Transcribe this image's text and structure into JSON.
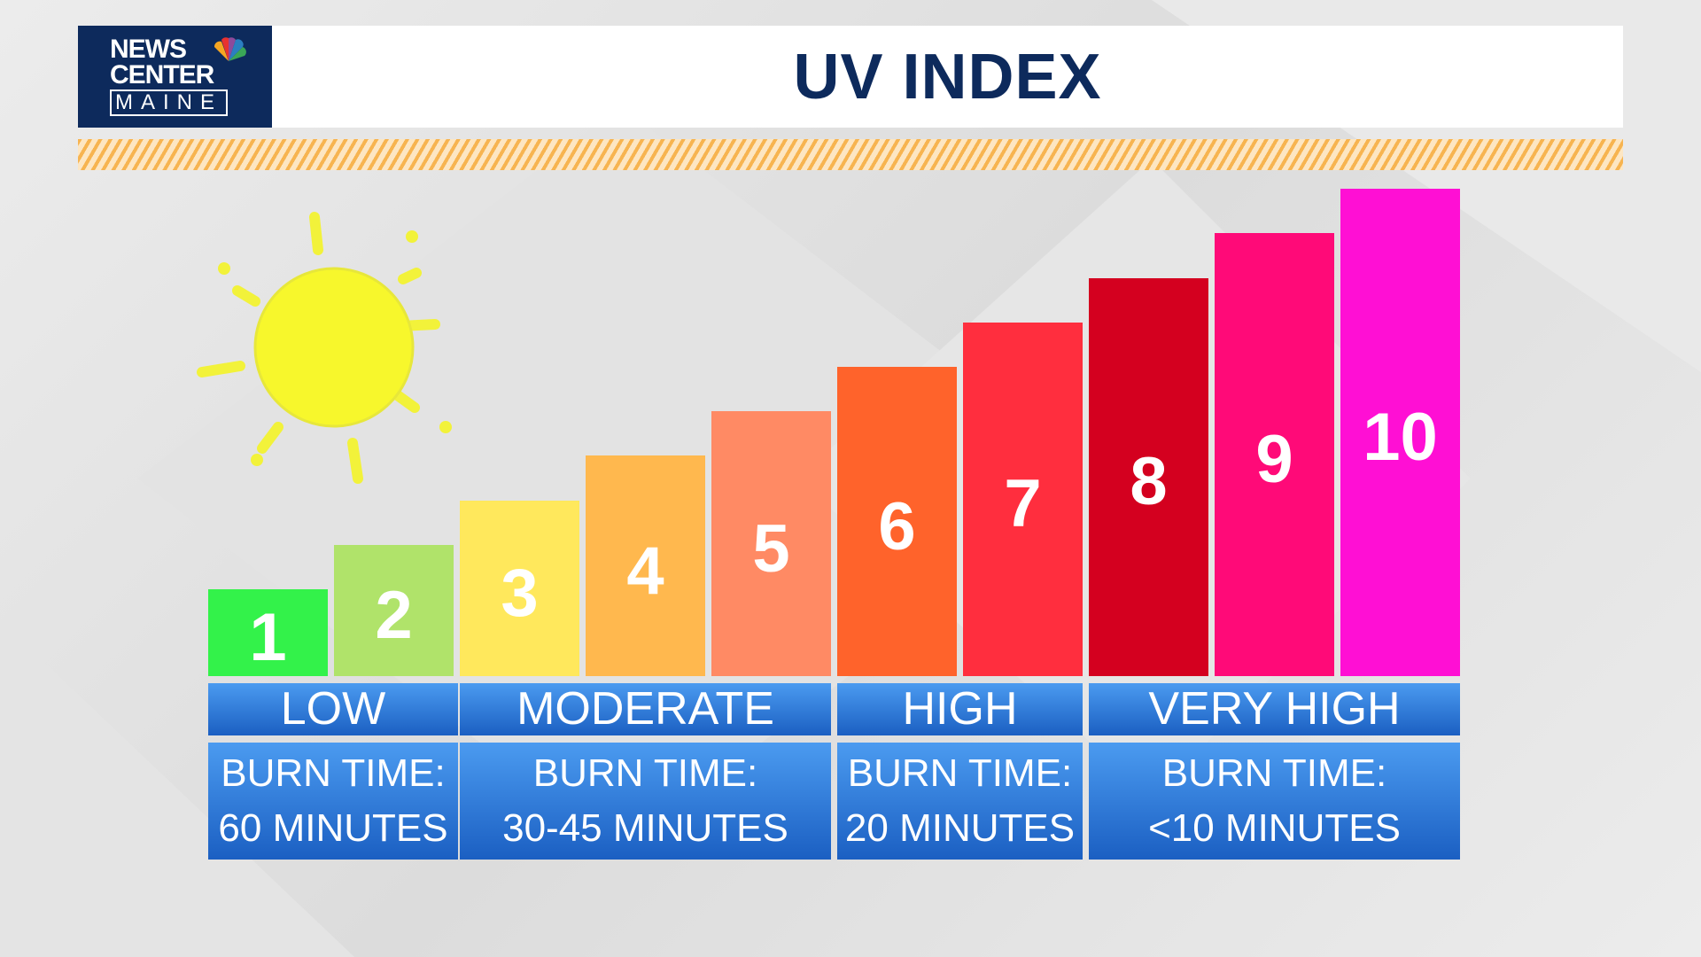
{
  "logo": {
    "lines": [
      "NEWS",
      "CENTER",
      "MAINE"
    ]
  },
  "header": {
    "title": "UV INDEX"
  },
  "groups": [
    {
      "label": "LOW",
      "burn_title": "BURN TIME:",
      "burn_time": "60 MINUTES",
      "levels": [
        {
          "value": 1,
          "color": "#33f24a"
        },
        {
          "value": 2,
          "color": "#b0e36a"
        }
      ]
    },
    {
      "label": "MODERATE",
      "burn_title": "BURN TIME:",
      "burn_time": "30-45 MINUTES",
      "levels": [
        {
          "value": 3,
          "color": "#ffe85c"
        },
        {
          "value": 4,
          "color": "#ffb84e"
        },
        {
          "value": 5,
          "color": "#ff8a64"
        }
      ]
    },
    {
      "label": "HIGH",
      "burn_title": "BURN TIME:",
      "burn_time": "20 MINUTES",
      "levels": [
        {
          "value": 6,
          "color": "#ff632b"
        },
        {
          "value": 7,
          "color": "#ff2e3e"
        }
      ]
    },
    {
      "label": "VERY HIGH",
      "burn_title": "BURN TIME:",
      "burn_time": "<10 MINUTES",
      "levels": [
        {
          "value": 8,
          "color": "#d4001f"
        },
        {
          "value": 9,
          "color": "#ff0a78"
        },
        {
          "value": 10,
          "color": "#ff0fd4"
        }
      ]
    }
  ]
}
